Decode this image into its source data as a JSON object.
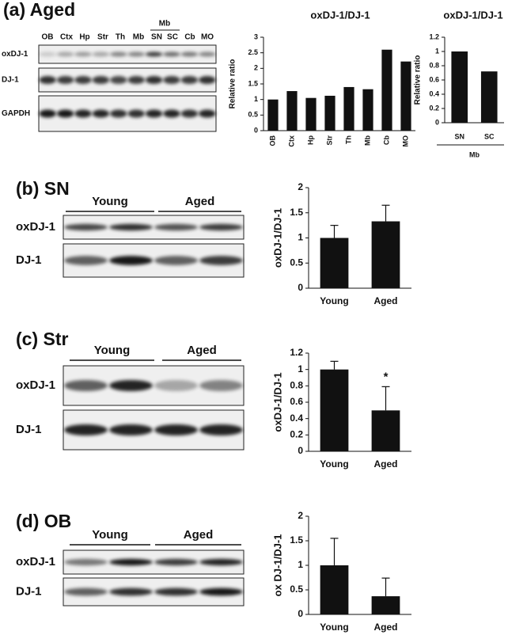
{
  "panels": [
    {
      "title": "(a) Aged",
      "lanes": [
        "OB",
        "Ctx",
        "Hp",
        "Str",
        "Th",
        "Mb",
        "SN",
        "SC",
        "Cb",
        "MO"
      ],
      "lane_group": "Mb",
      "rows": [
        "oxDJ-1",
        "DJ-1",
        "GAPDH"
      ]
    },
    {
      "title": "(b) SN",
      "groups": [
        "Young",
        "Aged"
      ],
      "rows": [
        "oxDJ-1",
        "DJ-1"
      ]
    },
    {
      "title": "(c) Str",
      "groups": [
        "Young",
        "Aged"
      ],
      "rows": [
        "oxDJ-1",
        "DJ-1"
      ]
    },
    {
      "title": "(d) OB",
      "groups": [
        "Young",
        "Aged"
      ],
      "rows": [
        "oxDJ-1",
        "DJ-1"
      ]
    }
  ],
  "chart_data": [
    {
      "type": "bar",
      "title": "oxDJ-1/DJ-1",
      "y_label": "Relative ratio",
      "categories": [
        "OB",
        "Ctx",
        "Hp",
        "Str",
        "Th",
        "Mb",
        "Cb",
        "MO"
      ],
      "values": [
        1.0,
        1.27,
        1.05,
        1.12,
        1.4,
        1.33,
        2.6,
        2.22
      ],
      "color": "#111111",
      "ylim": [
        0,
        3
      ],
      "yticks": [
        0,
        0.5,
        1,
        1.5,
        2,
        2.5,
        3
      ]
    },
    {
      "type": "bar",
      "title": "oxDJ-1/DJ-1",
      "y_label": "Relative ratio",
      "categories": [
        "SN",
        "SC"
      ],
      "group_label": "Mb",
      "values": [
        1.0,
        0.72
      ],
      "color": "#111111",
      "ylim": [
        0,
        1.2
      ],
      "yticks": [
        0,
        0.2,
        0.4,
        0.6,
        0.8,
        1,
        1.2
      ]
    },
    {
      "type": "bar",
      "y_label": "oxDJ-1/DJ-1",
      "categories": [
        "Young",
        "Aged"
      ],
      "values": [
        1.0,
        1.33
      ],
      "errors": [
        0.25,
        0.32
      ],
      "color": "#111111",
      "ylim": [
        0,
        2
      ],
      "yticks": [
        0,
        0.5,
        1,
        1.5,
        2
      ]
    },
    {
      "type": "bar",
      "y_label": "oxDJ-1/DJ-1",
      "categories": [
        "Young",
        "Aged"
      ],
      "values": [
        1.0,
        0.5
      ],
      "errors": [
        0.1,
        0.29
      ],
      "annotations": [
        null,
        "*"
      ],
      "color": "#111111",
      "ylim": [
        0,
        1.2
      ],
      "yticks": [
        0,
        0.2,
        0.4,
        0.6,
        0.8,
        1,
        1.2
      ]
    },
    {
      "type": "bar",
      "y_label": "ox DJ-1/DJ-1",
      "categories": [
        "Young",
        "Aged"
      ],
      "values": [
        1.0,
        0.37
      ],
      "errors": [
        0.55,
        0.37
      ],
      "color": "#111111",
      "ylim": [
        0,
        2
      ],
      "yticks": [
        0,
        0.5,
        1,
        1.5,
        2
      ]
    }
  ]
}
